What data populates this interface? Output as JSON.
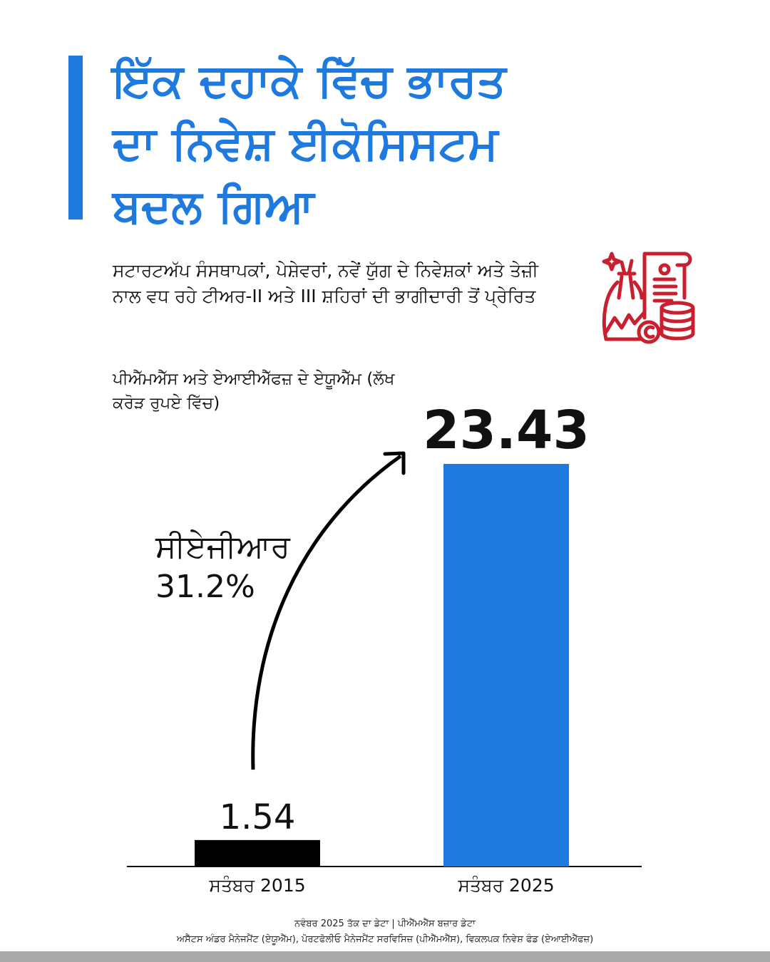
{
  "title_lines": [
    "ਇੱਕ ਦਹਾਕੇ ਵਿੱਚ ਭਾਰਤ",
    "ਦਾ ਨਿਵੇਸ਼ ਈਕੋਸਿਸਟਮ",
    "ਬਦਲ ਗਿਆ"
  ],
  "subtitle": "ਸਟਾਰਟਅੱਪ ਸੰਸਥਾਪਕਾਂ, ਪੇਸ਼ੇਵਰਾਂ, ਨਵੇਂ ਯੁੱਗ ਦੇ ਨਿਵੇਸ਼ਕਾਂ ਅਤੇ ਤੇਜ਼ੀ ਨਾਲ ਵਧ ਰਹੇ ਟੀਅਰ-II ਅਤੇ III ਸ਼ਹਿਰਾਂ ਦੀ ਭਾਗੀਦਾਰੀ ਤੋਂ ਪ੍ਰੇਰਿਤ",
  "icon": "money-bag-document-coins-icon",
  "colors": {
    "accent": "#1f7ae0",
    "bar_2015": "#000000",
    "bar_2025": "#1f7ae0",
    "icon": "#c8202f"
  },
  "chart_data": {
    "type": "bar",
    "title": "ਪੀਐੱਮਐੱਸ ਅਤੇ ਏਆਈਐੱਫਜ਼ ਦੇ ਏਯੂਐੱਮ (ਲੱਖ ਕਰੋੜ ਰੁਪਏ ਵਿੱਚ)",
    "categories": [
      "ਸਤੰਬਰ 2015",
      "ਸਤੰਬਰ 2025"
    ],
    "values": [
      1.54,
      23.43
    ],
    "value_labels": [
      "1.54",
      "23.43"
    ],
    "ylim": [
      0,
      23.43
    ],
    "grid": false,
    "annotation": {
      "label": "ਸੀਏਜੀਆਰ",
      "value": "31.2%"
    }
  },
  "footer": {
    "line1": "ਨਵੰਬਰ 2025 ਤੱਕ ਦਾ ਡੇਟਾ | ਪੀਐੱਮਐੱਸ ਬਜ਼ਾਰ ਡੇਟਾ",
    "line2": "ਅਸੈੱਟਸ ਅੰਡਰ ਮੈਨੇਜਮੈਂਟ (ਏਯੂਐੱਮ), ਪੋਰਟਫੋਲੀਓ ਮੈਨੇਜਮੈਂਟ ਸਰਵਿਸਿਜ਼ (ਪੀਐੱਮਐੱਸ), ਵਿਕਲਪਕ ਨਿਵੇਸ਼ ਫੰਡ (ਏਆਈਐੱਫਜ਼)"
  }
}
